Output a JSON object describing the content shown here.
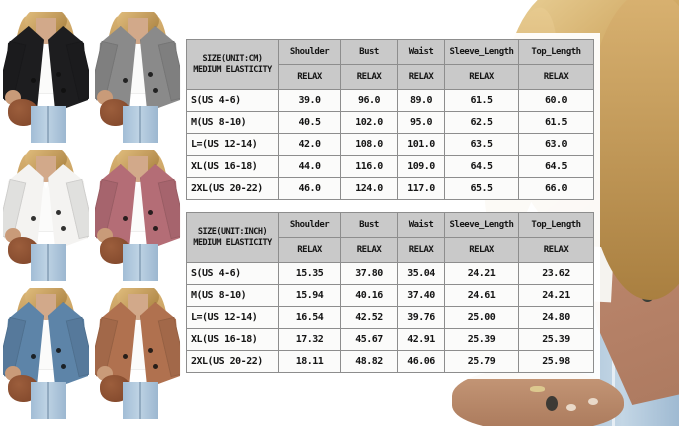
{
  "page": {
    "background": "#ffffff"
  },
  "thumbnails": {
    "shared_colors": {
      "hair": "#c59e5f",
      "skin": "#d2a98a",
      "inner_top": "#fbfbfa",
      "jeans": "#a9c3da",
      "clutch": "#8d5134"
    },
    "items": [
      {
        "name": "black-blazer",
        "color": "#1d1d1f"
      },
      {
        "name": "gray-blazer",
        "color": "#8a8a8a"
      },
      {
        "name": "white-blazer",
        "color": "#f4f3f1"
      },
      {
        "name": "pink-blazer",
        "color": "#b46d76"
      },
      {
        "name": "blue-blazer",
        "color": "#5d84a8"
      },
      {
        "name": "brown-blazer",
        "color": "#b0714f"
      }
    ]
  },
  "model_photo": {
    "colors": {
      "hair": "#cda45e",
      "skin": "#c79a7a",
      "blazer": "#bf8a6e",
      "top": "#f5f3ef",
      "jeans": "#b9cede",
      "button": "#3b403b"
    }
  },
  "size_tables": [
    {
      "title_line1": "SIZE(UNIT:CM)",
      "title_line2": "MEDIUM ELASTICITY",
      "columns": [
        "Shoulder",
        "Bust",
        "Waist",
        "Sleeve_Length",
        "Top_Length"
      ],
      "fit_label": "RELAX",
      "rows": [
        {
          "size": "S(US 4-6)",
          "values": [
            "39.0",
            "96.0",
            "89.0",
            "61.5",
            "60.0"
          ]
        },
        {
          "size": "M(US 8-10)",
          "values": [
            "40.5",
            "102.0",
            "95.0",
            "62.5",
            "61.5"
          ]
        },
        {
          "size": "L=(US 12-14)",
          "values": [
            "42.0",
            "108.0",
            "101.0",
            "63.5",
            "63.0"
          ]
        },
        {
          "size": "XL(US 16-18)",
          "values": [
            "44.0",
            "116.0",
            "109.0",
            "64.5",
            "64.5"
          ]
        },
        {
          "size": "2XL(US 20-22)",
          "values": [
            "46.0",
            "124.0",
            "117.0",
            "65.5",
            "66.0"
          ]
        }
      ]
    },
    {
      "title_line1": "SIZE(UNIT:INCH)",
      "title_line2": "MEDIUM ELASTICITY",
      "columns": [
        "Shoulder",
        "Bust",
        "Waist",
        "Sleeve_Length",
        "Top_Length"
      ],
      "fit_label": "RELAX",
      "rows": [
        {
          "size": "S(US 4-6)",
          "values": [
            "15.35",
            "37.80",
            "35.04",
            "24.21",
            "23.62"
          ]
        },
        {
          "size": "M(US 8-10)",
          "values": [
            "15.94",
            "40.16",
            "37.40",
            "24.61",
            "24.21"
          ]
        },
        {
          "size": "L=(US 12-14)",
          "values": [
            "16.54",
            "42.52",
            "39.76",
            "25.00",
            "24.80"
          ]
        },
        {
          "size": "XL(US 16-18)",
          "values": [
            "17.32",
            "45.67",
            "42.91",
            "25.39",
            "25.39"
          ]
        },
        {
          "size": "2XL(US 20-22)",
          "values": [
            "18.11",
            "48.82",
            "46.06",
            "25.79",
            "25.98"
          ]
        }
      ]
    }
  ]
}
